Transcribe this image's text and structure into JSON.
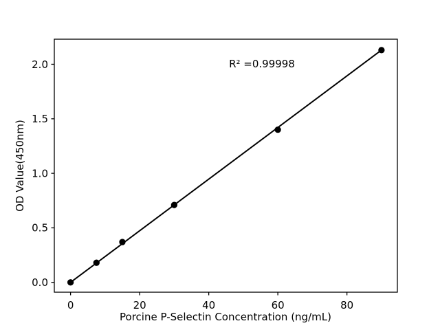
{
  "figure": {
    "background": "#ffffff",
    "foreground": "#000000"
  },
  "chart_data": {
    "type": "scatter",
    "title": "",
    "xlabel": "Porcine P-Selectin Concentration (ng/mL)",
    "ylabel": "OD Value(450nm)",
    "series": [
      {
        "name": "standard-curve-points",
        "x": [
          0,
          7.5,
          15,
          30,
          60,
          90
        ],
        "y": [
          0.0,
          0.18,
          0.37,
          0.71,
          1.4,
          2.13
        ]
      }
    ],
    "trendline": {
      "x": [
        0,
        90
      ],
      "y": [
        0.0,
        2.13
      ]
    },
    "annotation": {
      "text": "R² =0.99998",
      "x": 55.4,
      "y": 1.97
    },
    "xlim": [
      -4.7,
      94.6
    ],
    "ylim": [
      -0.09,
      2.23
    ],
    "xticks": {
      "values": [
        0,
        20,
        40,
        60,
        80
      ],
      "labels": [
        "0",
        "20",
        "40",
        "60",
        "80"
      ]
    },
    "yticks": {
      "values": [
        0,
        0.5,
        1.0,
        1.5,
        2.0
      ],
      "labels": [
        "0.0",
        "0.5",
        "1.0",
        "1.5",
        "2.0"
      ]
    },
    "grid": false,
    "legend": "none",
    "colors": {
      "marker": "#000000",
      "line": "#000000",
      "axis": "#000000",
      "background": "#ffffff"
    }
  }
}
